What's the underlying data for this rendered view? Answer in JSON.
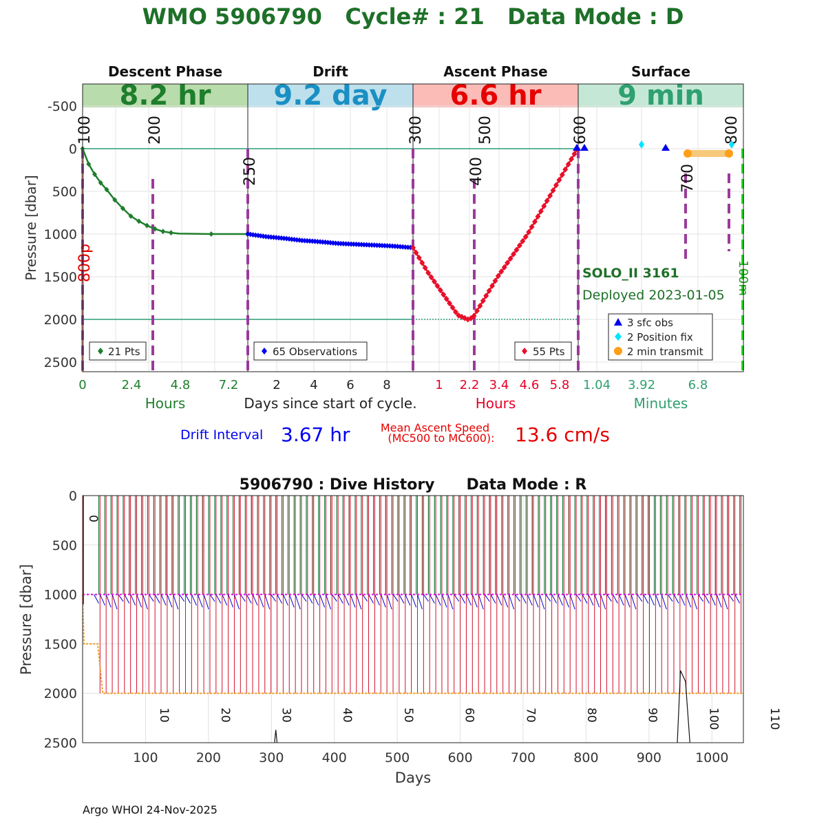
{
  "header": {
    "title": "WMO 5906790   Cycle# : 21   Data Mode : D"
  },
  "top_panel": {
    "phases": [
      {
        "name": "Descent Phase",
        "duration": "8.2 hr",
        "fill": "#b8dcab",
        "text_color": "#1e7e2c"
      },
      {
        "name": "Drift",
        "duration": "9.2 day",
        "fill": "#bde0ec",
        "text_color": "#1a8fc4"
      },
      {
        "name": "Ascent Phase",
        "duration": "6.6 hr",
        "fill": "#fbbcb8",
        "text_color": "#e60000"
      },
      {
        "name": "Surface",
        "duration": "9 min",
        "fill": "#c5e8d6",
        "text_color": "#2fa070"
      }
    ],
    "ylabel": "Pressure [dbar]",
    "yticks": [
      "-500",
      "0",
      "500",
      "1000",
      "1500",
      "2000",
      "2500"
    ],
    "ylim": [
      -600,
      2600
    ],
    "xgroups": [
      {
        "ticks": [
          "0",
          "2.4",
          "4.8",
          "7.2"
        ],
        "unit": "Hours",
        "color": "#1e7e2c"
      },
      {
        "ticks": [
          "2",
          "4",
          "6",
          "8"
        ],
        "unit": "Days since start of cycle.",
        "color": "#222222"
      },
      {
        "ticks": [
          "1",
          "2.2",
          "3.4",
          "4.6",
          "5.8"
        ],
        "unit": "Hours",
        "color": "#e60026"
      },
      {
        "ticks": [
          "1.04",
          "3.92",
          "6.8"
        ],
        "unit": "Minutes",
        "color": "#2fa070"
      }
    ],
    "mc_labels": [
      "100",
      "200",
      "250",
      "300",
      "400",
      "500",
      "600",
      "700",
      "800"
    ],
    "pressure_label": "800p",
    "hundred_m_label": "100m",
    "legends": {
      "descent": "21 Pts",
      "drift": "65 Observations",
      "ascent": "55 Pts"
    },
    "surface_legend": [
      "3 sfc obs",
      "2 Position fix",
      "2 min transmit"
    ],
    "float_name": "SOLO_II 3161",
    "deployed": "Deployed 2023-01-05",
    "drift_interval_label": "Drift Interval",
    "drift_interval_value": "3.67 hr",
    "mean_speed_label_1": "Mean Ascent Speed",
    "mean_speed_label_2": "(MC500 to MC600):",
    "mean_speed_value": "13.6 cm/s",
    "colors": {
      "descent": "#1e7e2c",
      "drift": "#0000ee",
      "ascent": "#e8102a",
      "mc": "#9b3a9b",
      "surface_line": "#2a9d78"
    }
  },
  "chart_data": [
    {
      "type": "line",
      "title": "WMO 5906790   Cycle# : 21   Data Mode : D",
      "ylabel": "Pressure [dbar]",
      "ylim": [
        2600,
        -600
      ],
      "series": [
        {
          "name": "Descent",
          "points": "21 Pts",
          "time_hours": [
            0,
            0.3,
            0.6,
            0.9,
            1.2,
            1.6,
            2.0,
            2.4,
            2.8,
            3.2,
            3.6,
            4.0,
            4.4,
            4.8,
            6.4,
            8.2
          ],
          "pressure": [
            0,
            180,
            300,
            400,
            480,
            600,
            700,
            790,
            850,
            900,
            940,
            970,
            985,
            995,
            1000,
            1000
          ]
        },
        {
          "name": "Drift",
          "points": "65 Observations",
          "time_days": [
            0,
            1,
            2,
            3,
            4,
            5,
            6,
            7,
            8,
            9.2
          ],
          "pressure": [
            1000,
            1030,
            1050,
            1075,
            1090,
            1110,
            1120,
            1130,
            1140,
            1160
          ]
        },
        {
          "name": "Ascent",
          "points": "55 Pts",
          "time_hours": [
            0,
            0.6,
            1.2,
            1.8,
            2.2,
            2.4,
            3.4,
            4.6,
            5.8,
            6.6
          ],
          "pressure": [
            1160,
            1450,
            1700,
            1950,
            2000,
            1980,
            1500,
            1000,
            400,
            0
          ]
        }
      ],
      "surface_obs": 3,
      "position_fixes": 2,
      "transmit_min": 2
    },
    {
      "type": "line",
      "title": "5906790 : Dive History      Data Mode : R",
      "xlabel": "Days",
      "ylabel": "Pressure [dbar]",
      "xlim": [
        0,
        1050
      ],
      "ylim": [
        2500,
        0
      ],
      "xticks": [
        100,
        200,
        300,
        400,
        500,
        600,
        700,
        800,
        900,
        1000
      ],
      "yticks": [
        0,
        500,
        1000,
        1500,
        2000,
        2500
      ],
      "cycle_labels": [
        "0",
        "10",
        "20",
        "30",
        "40",
        "50",
        "60",
        "70",
        "80",
        "90",
        "100",
        "110"
      ],
      "cycle_interval_days": 9.7,
      "drift_pressure": 1000,
      "profile_pressure": 2000
    }
  ],
  "footer": {
    "credit": "Argo WHOI 24-Nov-2025"
  }
}
